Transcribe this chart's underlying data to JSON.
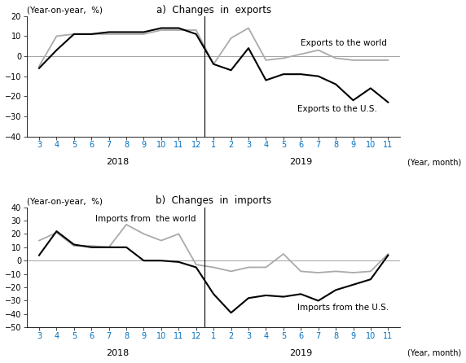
{
  "title_a": "a)  Changes  in  exports",
  "title_b": "b)  Changes  in  imports",
  "ylabel": "(Year-on-year,  %)",
  "xlabel": "(Year, month)",
  "tick_labels_2018": [
    "3",
    "4",
    "5",
    "6",
    "7",
    "8",
    "9",
    "10",
    "11",
    "12"
  ],
  "tick_labels_2019": [
    "1",
    "2",
    "3",
    "4",
    "5",
    "6",
    "7",
    "8",
    "9",
    "10",
    "11"
  ],
  "exports_world": [
    -5,
    10,
    11,
    11,
    11,
    11,
    11,
    13,
    13,
    13,
    -4,
    9,
    14,
    -2,
    -1,
    1,
    3,
    -1,
    -2,
    -2,
    -2
  ],
  "exports_us": [
    -6,
    3,
    11,
    11,
    12,
    12,
    12,
    14,
    14,
    11,
    -4,
    -7,
    4,
    -12,
    -9,
    -9,
    -10,
    -14,
    -22,
    -16,
    -23
  ],
  "imports_world": [
    15,
    21,
    11,
    11,
    10,
    27,
    20,
    15,
    20,
    -3,
    -5,
    -8,
    -5,
    -5,
    5,
    -8,
    -9,
    -8,
    -9,
    -8,
    5
  ],
  "imports_us": [
    4,
    22,
    12,
    10,
    10,
    10,
    0,
    0,
    -1,
    -5,
    -25,
    -39,
    -28,
    -26,
    -27,
    -25,
    -30,
    -22,
    -18,
    -14,
    4
  ],
  "color_world": "#aaaaaa",
  "color_us": "#000000",
  "ylim_a": [
    -40,
    20
  ],
  "ylim_b": [
    -50,
    40
  ],
  "yticks_a": [
    -40,
    -30,
    -20,
    -10,
    0,
    10,
    20
  ],
  "yticks_b": [
    -50,
    -40,
    -30,
    -20,
    -10,
    0,
    10,
    20,
    30,
    40
  ],
  "label_exports_world": "Exports to the world",
  "label_exports_us": "Exports to the U.S.",
  "label_imports_world": "Imports from  the world",
  "label_imports_us": "Imports from the U.S.",
  "tick_color_2018": "#0070c0",
  "tick_color_2019": "#0070c0",
  "year_color": "#000000",
  "fig_width": 5.72,
  "fig_height": 4.46,
  "dpi": 100
}
